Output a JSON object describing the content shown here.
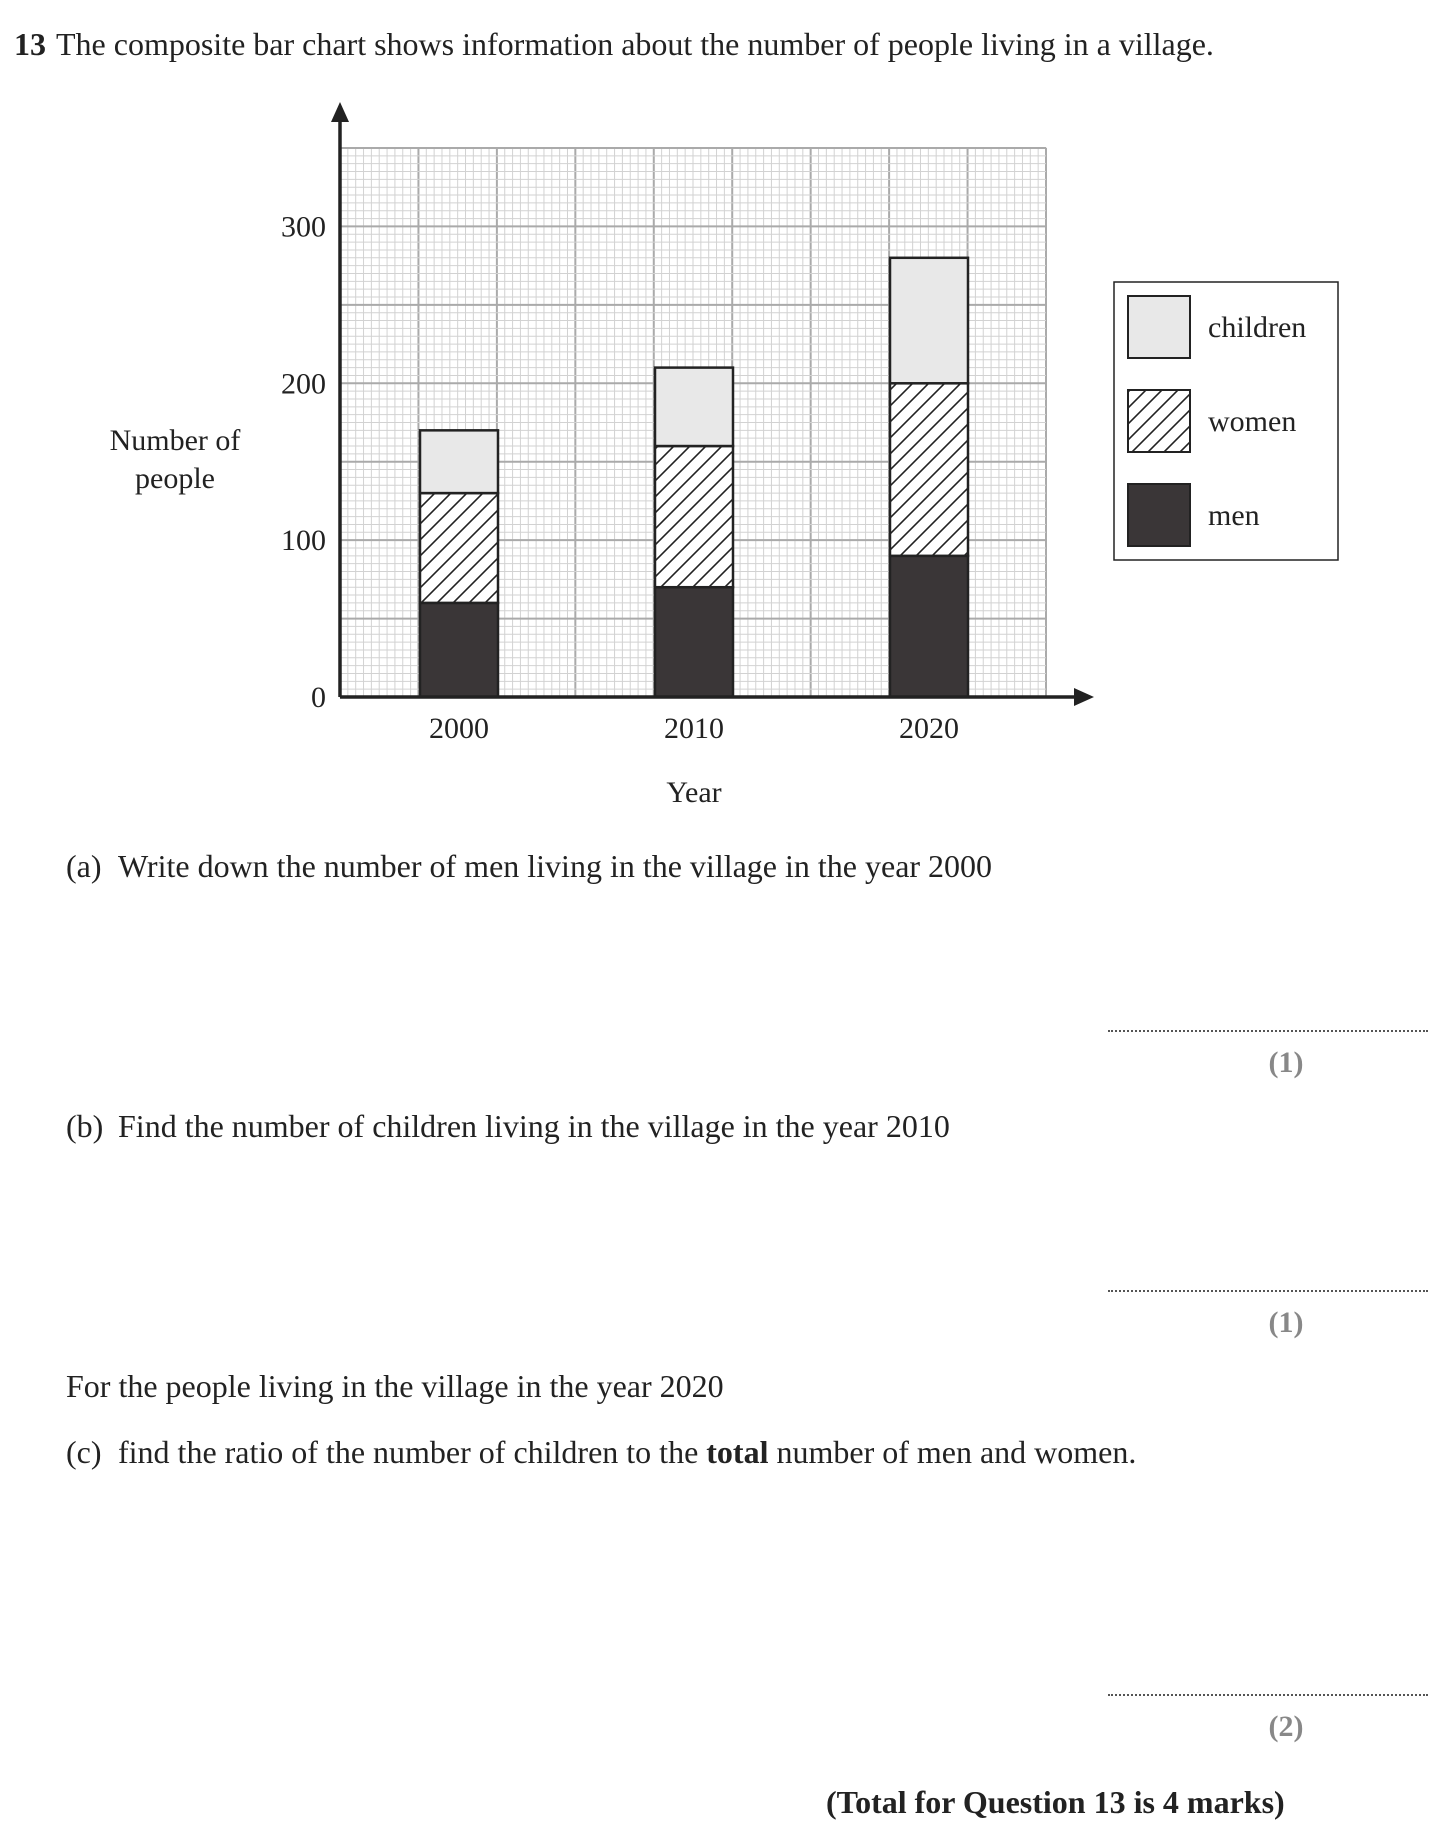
{
  "question": {
    "number": "13",
    "intro": "The composite bar chart shows information about the number of people living in a village."
  },
  "chart_data": {
    "type": "bar",
    "stacked": true,
    "categories": [
      "2000",
      "2010",
      "2020"
    ],
    "series": [
      {
        "name": "men",
        "values": [
          60,
          70,
          90
        ],
        "color": "#3a3637"
      },
      {
        "name": "women",
        "values": [
          70,
          90,
          110
        ],
        "pattern": "diagonal-hatch"
      },
      {
        "name": "children",
        "values": [
          40,
          50,
          80
        ],
        "color": "#e8e8e8"
      }
    ],
    "xlabel": "Year",
    "ylabel": "Number of people",
    "ylim": [
      0,
      350
    ],
    "yticks": [
      "0",
      "100",
      "200",
      "300"
    ],
    "grid": true,
    "legend": "right",
    "legend_entries": [
      "children",
      "women",
      "men"
    ]
  },
  "parts": [
    {
      "label": "(a)",
      "text": "Write down the number of men living in the village in the year 2000",
      "marks": "(1)"
    },
    {
      "label": "(b)",
      "text": "Find the number of children living in the village in the year 2010",
      "marks": "(1)"
    },
    {
      "label": "(c)",
      "text_before": "find the ratio of the number of children to the ",
      "bold": "total",
      "text_after": " number of men and women.",
      "marks": "(2)"
    }
  ],
  "context_2020": "For the people living in the village in the year 2020",
  "total": "(Total for Question 13 is 4 marks)"
}
